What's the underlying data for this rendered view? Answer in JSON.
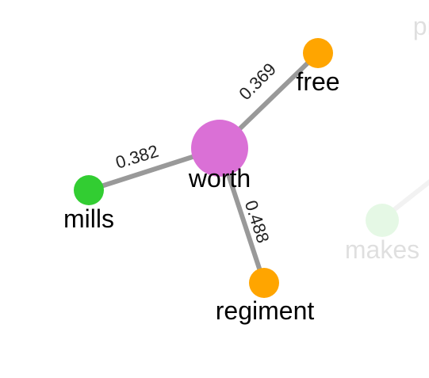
{
  "graph": {
    "center_word": "worth",
    "nodes": [
      {
        "id": "worth",
        "label": "worth",
        "color": "#da70d6",
        "role": "center"
      },
      {
        "id": "free",
        "label": "free",
        "color": "#ffa500",
        "role": "neighbor"
      },
      {
        "id": "mills",
        "label": "mills",
        "color": "#32cd32",
        "role": "neighbor"
      },
      {
        "id": "regiment",
        "label": "regiment",
        "color": "#ffa500",
        "role": "neighbor"
      },
      {
        "id": "makes",
        "label": "makes",
        "color": "#32cd32",
        "role": "faded"
      },
      {
        "id": "pr",
        "label": "pr",
        "color": "#cccccc",
        "role": "faded"
      }
    ],
    "edges": [
      {
        "source": "worth",
        "target": "free",
        "weight": "0.369",
        "color": "#999999"
      },
      {
        "source": "worth",
        "target": "mills",
        "weight": "0.382",
        "color": "#999999"
      },
      {
        "source": "worth",
        "target": "regiment",
        "weight": "0.488",
        "color": "#999999"
      }
    ]
  }
}
